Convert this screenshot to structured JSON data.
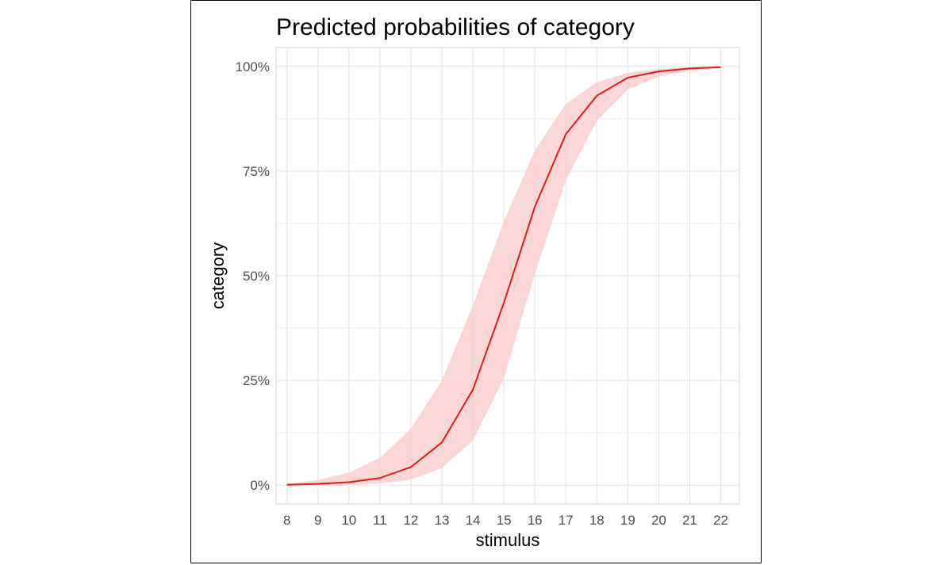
{
  "chart_data": {
    "type": "line",
    "title": "Predicted probabilities of category",
    "xlabel": "stimulus",
    "ylabel": "category",
    "xlim": [
      7.65,
      22.6
    ],
    "ylim": [
      -0.045,
      1.045
    ],
    "x_ticks": [
      8,
      9,
      10,
      11,
      12,
      13,
      14,
      15,
      16,
      17,
      18,
      19,
      20,
      21,
      22
    ],
    "y_ticks": [
      0,
      0.25,
      0.5,
      0.75,
      1.0
    ],
    "y_tick_labels": [
      "0%",
      "25%",
      "50%",
      "75%",
      "100%"
    ],
    "grid": true,
    "series": [
      {
        "x": [
          8,
          9,
          10,
          11,
          12,
          13,
          14,
          15,
          16,
          17,
          18,
          19,
          20,
          21,
          22
        ],
        "y": [
          0.001,
          0.003,
          0.007,
          0.017,
          0.043,
          0.102,
          0.228,
          0.435,
          0.665,
          0.838,
          0.93,
          0.973,
          0.988,
          0.995,
          0.998
        ],
        "lower": [
          0.0,
          0.0,
          0.001,
          0.004,
          0.013,
          0.041,
          0.107,
          0.255,
          0.505,
          0.728,
          0.87,
          0.945,
          0.976,
          0.99,
          0.996
        ],
        "upper": [
          0.004,
          0.012,
          0.03,
          0.065,
          0.135,
          0.25,
          0.43,
          0.63,
          0.8,
          0.91,
          0.962,
          0.985,
          0.994,
          0.998,
          0.999
        ],
        "color": "#e31a1c",
        "band_color": "#f8c9c9"
      }
    ]
  }
}
